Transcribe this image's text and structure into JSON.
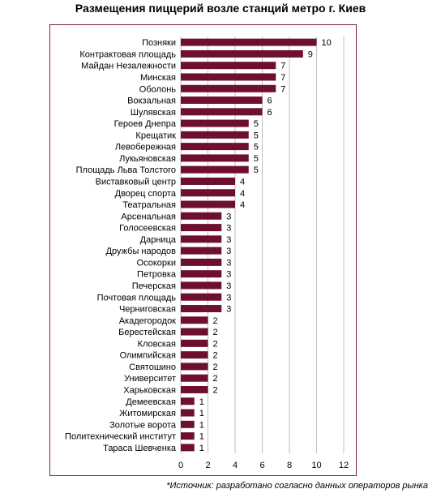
{
  "title": "Размещения пиццерий возле станций метро г. Киев",
  "note": "*Источник: разработано согласно данных операторов рынка",
  "colors": {
    "bar": "#6e0f31",
    "grid": "#bfbfbf",
    "frame": "#7a1f3d"
  },
  "chart_data": {
    "type": "bar",
    "orientation": "horizontal",
    "categories": [
      "Позняки",
      "Контрактовая площадь",
      "Майдан Незалежности",
      "Минская",
      "Оболонь",
      "Вокзальная",
      "Шулявская",
      "Героев Днепра",
      "Крещатик",
      "Левобережная",
      "Лукьяновская",
      "Площадь Льва Толстого",
      "Виставковый центр",
      "Дворец спорта",
      "Театральная",
      "Арсенальная",
      "Голосеевская",
      "Дарница",
      "Дружбы народов",
      "Осокорки",
      "Петровка",
      "Печерская",
      "Почтовая площадь",
      "Черниговская",
      "Акадегородок",
      "Берестейская",
      "Кловская",
      "Олимпийская",
      "Святошино",
      "Университет",
      "Харьковская",
      "Демеевская",
      "Житомирская",
      "Золотые ворота",
      "Политехнический институт",
      "Тараса Шевченка"
    ],
    "values": [
      10,
      9,
      7,
      7,
      7,
      6,
      6,
      5,
      5,
      5,
      5,
      5,
      4,
      4,
      4,
      3,
      3,
      3,
      3,
      3,
      3,
      3,
      3,
      3,
      2,
      2,
      2,
      2,
      2,
      2,
      2,
      1,
      1,
      1,
      1,
      1
    ],
    "xlim": [
      0,
      12
    ],
    "xticks": [
      0,
      2,
      4,
      6,
      8,
      10,
      12
    ],
    "grid": true,
    "data_labels": true
  }
}
